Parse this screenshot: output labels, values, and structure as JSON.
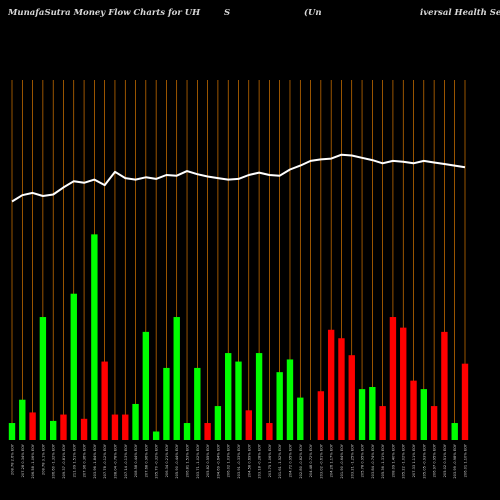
{
  "title": {
    "part1": "MunafaSutra  Money Flow  Charts for UH",
    "part2": "S",
    "part3": "(Un",
    "part4": "iversal Health Services"
  },
  "colors": {
    "background": "#000000",
    "up": "#00ff00",
    "down": "#ff0000",
    "line": "#ffffff",
    "grid": "#ff8c00"
  },
  "chart_data": {
    "type": "bar",
    "title": "MunafaSutra  Money Flow  Charts for UHS (Universal Health Services",
    "xlabel": "",
    "ylabel": "",
    "grid": true,
    "ylim": [
      0,
      100
    ],
    "categories": [
      "208.78 2.6% EOY",
      "207.28 0.34% EOY",
      "206.58 -1.06% EOY",
      "208.78 3.1% EOY",
      "206.60 -1.32% EOY",
      "209.37 -0.81% EOY",
      "211.09 1.51% EOY",
      "207.96 0.36% EOY",
      "203.96 -1.84% EOY",
      "207.78 -0.12% EOY",
      "208.04 -0.78% EOY",
      "207.14 -0.13% EOY",
      "208.58 0.44% EOY",
      "207.68 0.96% EOY",
      "205.70 -0.32% EOY",
      "206.34 0.21% EOY",
      "205.90 -0.44% EOY",
      "206.81 1.53% EOY",
      "203.71 -1.02% EOY",
      "205.82 0.55% EOY",
      "204.69 -0.64% EOY",
      "206.02 1.03% EOY",
      "203.91 -0.33% EOY",
      "204.58 0.69% EOY",
      "203.18 -0.28% EOY",
      "203.75 1.06% EOY",
      "201.61 -1.52% EOY",
      "204.72 0.95% EOY",
      "202.80 -0.82% EOY",
      "204.48 0.72% EOY",
      "203.02 -0.61% EOY",
      "204.26 1.17% EOY",
      "201.90 -0.64% EOY",
      "203.21 -1.25% EOY",
      "205.78 0.95% EOY",
      "203.84 -0.74% EOY",
      "205.36 -1.31% EOY",
      "208.09 1.40% EOY",
      "205.22 -1.02% EOY",
      "207.33 1.11% EOY",
      "205.05 -0.93% EOY",
      "206.97 0.95% EOY",
      "205.02 0.51% EOY",
      "203.99 -0.98% EOY",
      "206.01 1.10% EOY"
    ],
    "series": [
      {
        "values": [
          8,
          19,
          13,
          58,
          9,
          12,
          69,
          10,
          97,
          37,
          12,
          12,
          17,
          51,
          4,
          34,
          58,
          8,
          34,
          8,
          16,
          41,
          37,
          14,
          41,
          8,
          32,
          38,
          20,
          0,
          23,
          52,
          48,
          40,
          24,
          25,
          16,
          58,
          53,
          28,
          24,
          16,
          51,
          8,
          36
        ],
        "directions": [
          "up",
          "up",
          "down",
          "up",
          "up",
          "down",
          "up",
          "down",
          "up",
          "down",
          "down",
          "down",
          "up",
          "up",
          "up",
          "up",
          "up",
          "up",
          "up",
          "down",
          "up",
          "up",
          "up",
          "down",
          "up",
          "down",
          "up",
          "up",
          "up",
          "up",
          "down",
          "down",
          "down",
          "down",
          "up",
          "up",
          "down",
          "down",
          "down",
          "down",
          "up",
          "down",
          "down",
          "up",
          "down"
        ]
      }
    ],
    "line": {
      "values": [
        34,
        42,
        45,
        41,
        43,
        52,
        60,
        58,
        62,
        55,
        72,
        64,
        62,
        65,
        63,
        68,
        67,
        73,
        69,
        66,
        64,
        62,
        63,
        68,
        71,
        68,
        67,
        75,
        80,
        86,
        88,
        89,
        94,
        93,
        90,
        87,
        83,
        86,
        85,
        83,
        86,
        84,
        82,
        80,
        78
      ],
      "ylim": [
        0,
        100
      ]
    }
  }
}
